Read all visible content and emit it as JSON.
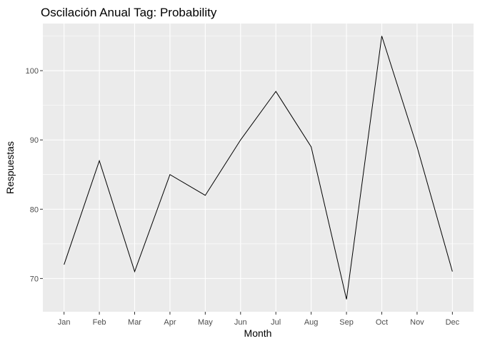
{
  "chart_data": {
    "type": "line",
    "title": "Oscilación Anual Tag: Probability",
    "xlabel": "Month",
    "ylabel": "Respuestas",
    "categories": [
      "Jan",
      "Feb",
      "Mar",
      "Apr",
      "May",
      "Jun",
      "Jul",
      "Aug",
      "Sep",
      "Oct",
      "Nov",
      "Dec"
    ],
    "series": [
      {
        "values": [
          72,
          87,
          71,
          85,
          82,
          90,
          97,
          89,
          67,
          105,
          89,
          71
        ]
      }
    ],
    "ylim": [
      65.2,
      106.8
    ],
    "yticks": [
      70,
      80,
      90,
      100
    ],
    "grid": true,
    "legend": "none",
    "colors": {
      "panel_background": "#EBEBEB",
      "grid_major": "#FFFFFF",
      "line": "#000000",
      "tick_text": "#4D4D4D"
    }
  }
}
